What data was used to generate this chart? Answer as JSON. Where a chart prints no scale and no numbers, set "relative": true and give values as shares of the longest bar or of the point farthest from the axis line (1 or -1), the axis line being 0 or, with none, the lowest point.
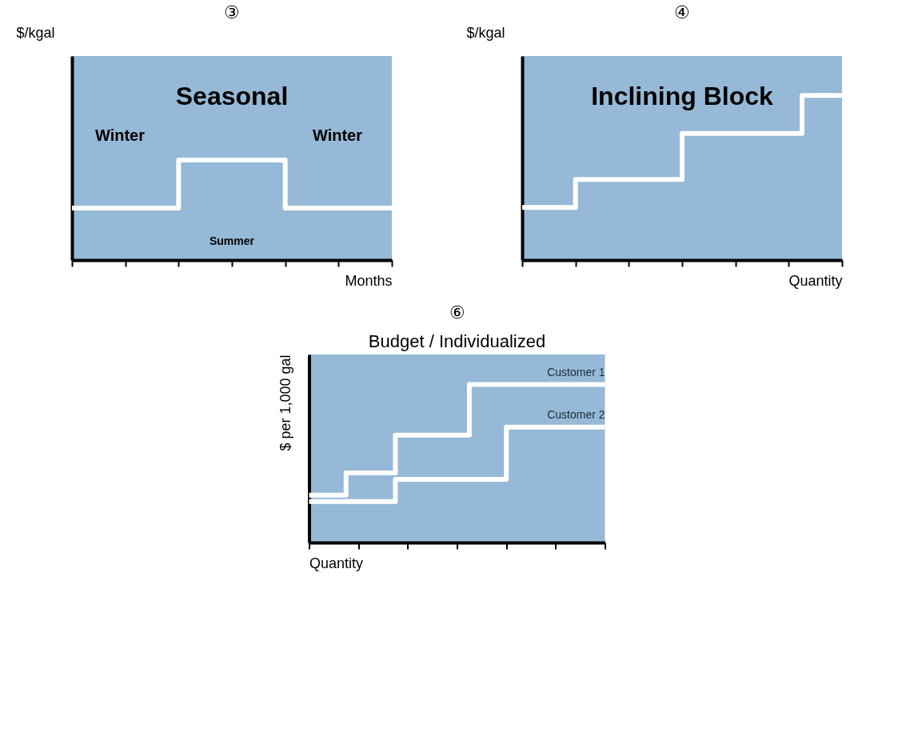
{
  "chart_data": [
    {
      "type": "step",
      "title": "③",
      "subtitle": "Seasonal",
      "ylabel": "$/kgal",
      "xlabel": "Months",
      "relative": true,
      "categories": [
        null,
        null,
        null,
        null,
        null,
        null,
        null,
        null,
        null,
        null,
        null,
        null,
        null,
        null,
        null,
        null,
        null,
        null,
        null,
        null,
        null,
        null,
        null,
        null,
        null
      ],
      "series": [
        {
          "color": "#ffffff",
          "values": [
            0.52,
            0.52,
            0.52,
            0.52,
            0.52,
            0.52,
            0.52,
            0.52,
            1,
            1,
            1,
            1,
            1,
            1,
            1,
            1,
            0.52,
            0.52,
            0.52,
            0.52,
            0.52,
            0.52,
            0.52,
            0.52,
            0.52
          ]
        }
      ],
      "annotations": [
        "Winter",
        "Winter",
        "Summer"
      ]
    },
    {
      "type": "step",
      "title": "④",
      "subtitle": "Inclining Block",
      "ylabel": "$/kgal",
      "xlabel": "Quantity",
      "relative": true,
      "categories": [
        null,
        null,
        null,
        null,
        null,
        null,
        null,
        null,
        null,
        null,
        null,
        null,
        null,
        null,
        null,
        null,
        null,
        null,
        null,
        null,
        null,
        null,
        null,
        null,
        null
      ],
      "series": [
        {
          "color": "#ffffff",
          "values": [
            0.32,
            0.32,
            0.32,
            0.32,
            0.49,
            0.49,
            0.49,
            0.49,
            0.49,
            0.49,
            0.49,
            0.49,
            0.77,
            0.77,
            0.77,
            0.77,
            0.77,
            0.77,
            0.77,
            0.77,
            0.77,
            1,
            1,
            1,
            1
          ]
        }
      ]
    },
    {
      "type": "step",
      "title": "⑥",
      "subtitle": "Budget / Individualized",
      "ylabel": "$ per 1,000 gal",
      "xlabel": "Quantity",
      "relative": true,
      "categories": [
        null,
        null,
        null,
        null,
        null,
        null,
        null,
        null,
        null,
        null,
        null,
        null,
        null,
        null,
        null,
        null,
        null,
        null,
        null,
        null,
        null,
        null,
        null,
        null,
        null
      ],
      "series": [
        {
          "name": "Customer 1",
          "color": "#ffffff",
          "values": [
            0.3,
            0.3,
            0.3,
            0.44,
            0.44,
            0.44,
            0.44,
            0.68,
            0.68,
            0.68,
            0.68,
            0.68,
            0.68,
            1,
            1,
            1,
            1,
            1,
            1,
            1,
            1,
            1,
            1,
            1,
            1
          ]
        },
        {
          "name": "Customer 2",
          "color": "#ffffff",
          "values": [
            0.26,
            0.26,
            0.26,
            0.26,
            0.26,
            0.26,
            0.26,
            0.4,
            0.4,
            0.4,
            0.4,
            0.4,
            0.4,
            0.4,
            0.4,
            0.4,
            0.73,
            0.73,
            0.73,
            0.73,
            0.73,
            0.73,
            0.73,
            0.73,
            0.73
          ]
        }
      ]
    }
  ]
}
